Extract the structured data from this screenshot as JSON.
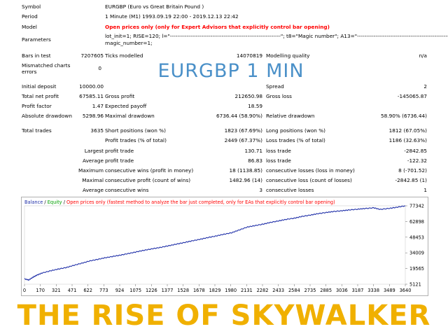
{
  "report": {
    "symbol": {
      "label": "Symbol",
      "value": "EURGBP (Euro vs Great Britain Pound )"
    },
    "period": {
      "label": "Period",
      "value": "1 Minute (M1) 1993.09.19 22:00 - 2019.12.13 22:42"
    },
    "model": {
      "label": "Model",
      "value": "Open prices only (only for Expert Advisors that explicitly control bar opening)"
    },
    "parameters": {
      "label": "Parameters",
      "line1": "lot_init=1; RISE=120; l=\"------------------------------------------------------------\"; t8=\"Magic number\"; A13=\"------------------------------------------------------\";",
      "line2": "magic_number=1;"
    },
    "bars_in_test": {
      "label": "Bars in test",
      "value": "7207605"
    },
    "ticks_modelled": {
      "label": "Ticks modelled",
      "value": "14070819"
    },
    "modelling_quality": {
      "label": "Modelling quality",
      "value": "n/a"
    },
    "mismatched": {
      "label1": "Mismatched charts",
      "label2": "errors",
      "value": "0"
    },
    "initial_deposit": {
      "label": "Initial deposit",
      "value": "10000.00"
    },
    "spread": {
      "label": "Spread",
      "value": "2"
    },
    "total_net_profit": {
      "label": "Total net profit",
      "value": "67585.11"
    },
    "gross_profit": {
      "label": "Gross profit",
      "value": "212650.98"
    },
    "gross_loss": {
      "label": "Gross loss",
      "value": "-145065.87"
    },
    "profit_factor": {
      "label": "Profit factor",
      "value": "1.47"
    },
    "expected_payoff": {
      "label": "Expected payoff",
      "value": "18.59"
    },
    "absolute_drawdown": {
      "label": "Absolute drawdown",
      "value": "5298.96"
    },
    "maximal_drawdown": {
      "label": "Maximal drawdown",
      "value": "6736.44 (58.90%)"
    },
    "relative_drawdown": {
      "label": "Relative drawdown",
      "value": "58.90% (6736.44)"
    },
    "total_trades": {
      "label": "Total trades",
      "value": "3635"
    },
    "short_positions": {
      "label": "Short positions (won %)",
      "value": "1823 (67.69%)"
    },
    "long_positions": {
      "label": "Long positions (won %)",
      "value": "1812 (67.05%)"
    },
    "profit_trades": {
      "label": "Profit trades (% of total)",
      "value": "2449 (67.37%)"
    },
    "loss_trades": {
      "label": "Loss trades (% of total)",
      "value": "1186 (32.63%)"
    },
    "largest": {
      "label": "Largest",
      "profit_label": "profit trade",
      "profit_value": "130.71",
      "loss_label": "loss trade",
      "loss_value": "-2842.85"
    },
    "average": {
      "label": "Average",
      "profit_label": "profit trade",
      "profit_value": "86.83",
      "loss_label": "loss trade",
      "loss_value": "-122.32"
    },
    "maximum": {
      "label": "Maximum",
      "wins_label": "consecutive wins (profit in money)",
      "wins_value": "18 (1138.85)",
      "losses_label": "consecutive losses (loss in money)",
      "losses_value": "8 (-701.52)"
    },
    "maximal": {
      "label": "Maximal",
      "profit_label": "consecutive profit (count of wins)",
      "profit_value": "1482.96 (14)",
      "loss_label": "consecutive loss (count of losses)",
      "loss_value": "-2842.85 (1)"
    },
    "average_consec": {
      "label": "Average",
      "wins_label": "consecutive wins",
      "wins_value": "3",
      "losses_label": "consecutive losses",
      "losses_value": "1"
    }
  },
  "overlay_title": "EURGBP 1 MIN",
  "banner": "THE RISE OF SKYWALKER",
  "chart_data": {
    "type": "line",
    "legend": {
      "balance": "Balance",
      "sep1": " / ",
      "equity": "Equity",
      "sep2": " / ",
      "note": "Open prices only (fastest method to analyze the bar just completed, only for EAs that explicitly control bar opening)"
    },
    "colors": {
      "balance": "#1f2fa8",
      "equity": "#00a000",
      "note": "#ff0000",
      "legend_balance": "#1f2fa8"
    },
    "x_ticks": [
      "0",
      "170",
      "321",
      "471",
      "622",
      "773",
      "924",
      "1075",
      "1226",
      "1377",
      "1528",
      "1678",
      "1829",
      "1980",
      "2131",
      "2282",
      "2433",
      "2584",
      "2735",
      "2885",
      "3036",
      "3187",
      "3338",
      "3489",
      "3640"
    ],
    "y_ticks": [
      "77342",
      "62898",
      "48453",
      "34009",
      "19565",
      "5121"
    ],
    "ylim": [
      5121,
      77342
    ],
    "xlim": [
      0,
      3640
    ],
    "series": [
      {
        "name": "Balance",
        "x": [
          0,
          40,
          80,
          120,
          170,
          250,
          321,
          400,
          471,
          550,
          622,
          700,
          773,
          850,
          924,
          1000,
          1075,
          1150,
          1226,
          1300,
          1377,
          1450,
          1528,
          1600,
          1678,
          1750,
          1829,
          1900,
          1980,
          2050,
          2131,
          2200,
          2282,
          2350,
          2433,
          2500,
          2584,
          2650,
          2735,
          2800,
          2885,
          2950,
          3036,
          3100,
          3187,
          3250,
          3338,
          3400,
          3489,
          3560,
          3640
        ],
        "y": [
          10000,
          9000,
          11500,
          13500,
          15500,
          17500,
          19000,
          20500,
          22500,
          24500,
          26500,
          28000,
          29500,
          30800,
          32000,
          33500,
          35000,
          36500,
          37800,
          39000,
          40500,
          42000,
          43500,
          45000,
          46500,
          48000,
          49500,
          51000,
          52500,
          55000,
          57800,
          59000,
          60500,
          62000,
          63500,
          64800,
          66000,
          67500,
          68800,
          70000,
          71200,
          72000,
          72800,
          73500,
          74200,
          74800,
          75500,
          74000,
          75000,
          76000,
          77342
        ]
      }
    ]
  }
}
